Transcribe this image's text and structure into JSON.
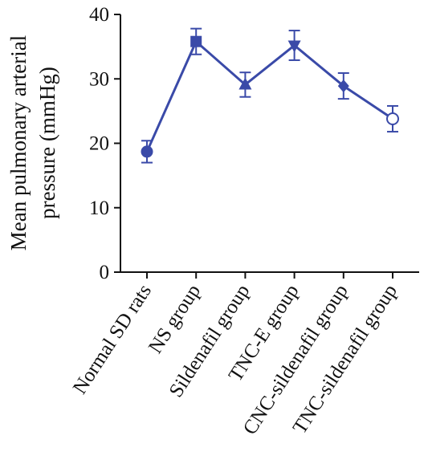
{
  "chart_data": {
    "type": "line",
    "title": "",
    "xlabel": "",
    "ylabel_lines": [
      "Mean pulmonary arterial",
      "pressure (mmHg)"
    ],
    "ylim": [
      0,
      40
    ],
    "yticks": [
      0,
      10,
      20,
      30,
      40
    ],
    "grid": false,
    "legend": "none",
    "categories": [
      "Normal SD rats",
      "NS group",
      "Sildenafil group",
      "TNC-E group",
      "CNC-sildenafil group",
      "TNC-sildenafil group"
    ],
    "series": [
      {
        "values": [
          18.7,
          35.8,
          29.1,
          35.2,
          28.9,
          23.8
        ],
        "errors": [
          1.7,
          2.0,
          1.9,
          2.3,
          2.0,
          2.0
        ],
        "markers": [
          "circle",
          "square",
          "triangle-up",
          "triangle-down",
          "diamond",
          "circle-open"
        ],
        "color": "#3a4aa8"
      }
    ]
  }
}
